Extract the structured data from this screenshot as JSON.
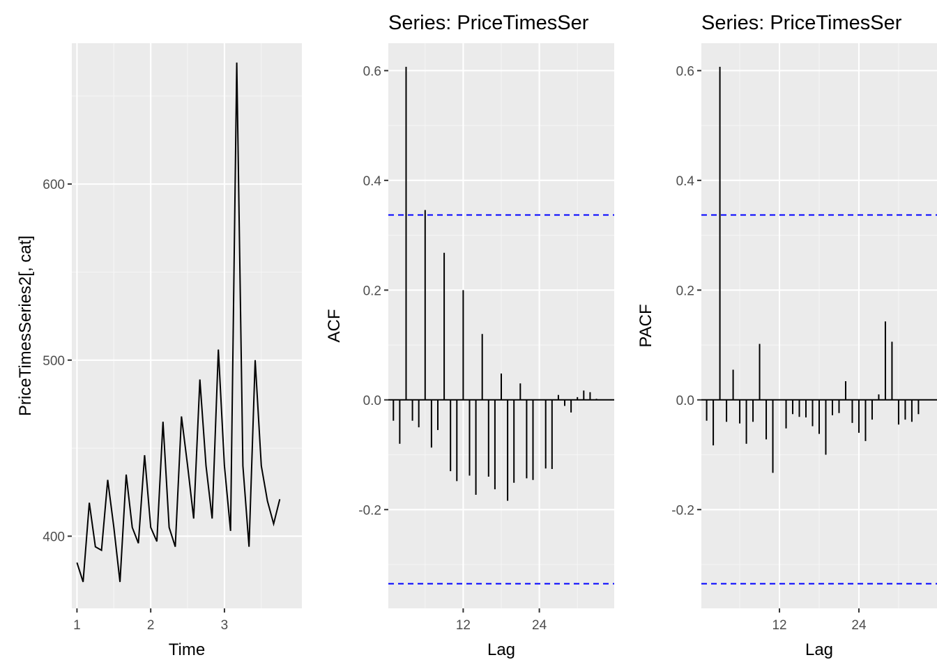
{
  "colors": {
    "panel_bg": "#ebebeb",
    "grid_major": "#ffffff",
    "grid_minor": "#f5f5f5",
    "line": "#000000",
    "ci_line": "#0000ff",
    "tick_text": "#4d4d4d"
  },
  "chart_data": [
    {
      "type": "line",
      "title": "",
      "xlabel": "Time",
      "ylabel": "PriceTimesSeries2[, cat]",
      "xlim": [
        0.93,
        4.05
      ],
      "ylim": [
        359,
        680
      ],
      "x_ticks": [
        1,
        2,
        3
      ],
      "x_tick_labels": [
        "1",
        "2",
        "3"
      ],
      "x_minor_ticks": [
        1.5,
        2.5,
        3.5
      ],
      "y_ticks": [
        400,
        500,
        600
      ],
      "y_tick_labels": [
        "400",
        "500",
        "600"
      ],
      "y_minor_ticks": [
        450,
        550,
        650
      ],
      "grid": true,
      "series": [
        {
          "x": [
            1.0,
            1.083,
            1.167,
            1.25,
            1.333,
            1.417,
            1.5,
            1.583,
            1.667,
            1.75,
            1.833,
            1.917,
            2.0,
            2.083,
            2.167,
            2.25,
            2.333,
            2.417,
            2.5,
            2.583,
            2.667,
            2.75,
            2.833,
            2.917,
            3.0,
            3.083,
            3.167,
            3.25,
            3.333,
            3.417,
            3.5,
            3.583,
            3.667,
            3.75
          ],
          "values": [
            385,
            374,
            419,
            394,
            392,
            432,
            405,
            374,
            435,
            405,
            396,
            446,
            405,
            397,
            465,
            405,
            394,
            468,
            440,
            410,
            489,
            440,
            410,
            506,
            440,
            403,
            669,
            440,
            394,
            500,
            440,
            420,
            407,
            421
          ]
        }
      ]
    },
    {
      "type": "bar",
      "title": "Series: PriceTimesSer",
      "xlabel": "Lag",
      "ylabel": "ACF",
      "xlim": [
        0.2,
        35.8
      ],
      "ylim": [
        -0.38,
        0.65
      ],
      "x_ticks": [
        12,
        24
      ],
      "x_tick_labels": [
        "12",
        "24"
      ],
      "x_minor_ticks": [
        6,
        18,
        30
      ],
      "y_ticks": [
        -0.2,
        0.0,
        0.2,
        0.4,
        0.6
      ],
      "y_tick_labels": [
        "-0.2",
        "0.0",
        "0.2",
        "0.4",
        "0.6"
      ],
      "y_minor_ticks": [
        -0.3,
        -0.1,
        0.1,
        0.3,
        0.5
      ],
      "grid": true,
      "confidence_bounds": [
        0.337,
        -0.335
      ],
      "lags": [
        1,
        2,
        3,
        4,
        5,
        6,
        7,
        8,
        9,
        10,
        11,
        12,
        13,
        14,
        15,
        16,
        17,
        18,
        19,
        20,
        21,
        22,
        23,
        24,
        25,
        26,
        27,
        28,
        29,
        30,
        31,
        32,
        33
      ],
      "values": [
        -0.038,
        -0.08,
        0.607,
        -0.038,
        -0.05,
        0.346,
        -0.087,
        -0.055,
        0.268,
        -0.13,
        -0.148,
        0.2,
        -0.138,
        -0.173,
        0.12,
        -0.14,
        -0.163,
        0.048,
        -0.184,
        -0.151,
        0.03,
        -0.143,
        -0.146,
        0.0,
        -0.125,
        -0.126,
        0.009,
        -0.011,
        -0.023,
        0.005,
        0.017,
        0.014,
        0.002
      ]
    },
    {
      "type": "bar",
      "title": "Series: PriceTimesSer",
      "xlabel": "Lag",
      "ylabel": "PACF",
      "xlim": [
        0.2,
        35.8
      ],
      "ylim": [
        -0.38,
        0.65
      ],
      "x_ticks": [
        12,
        24
      ],
      "x_tick_labels": [
        "12",
        "24"
      ],
      "x_minor_ticks": [
        6,
        18,
        30
      ],
      "y_ticks": [
        -0.2,
        0.0,
        0.2,
        0.4,
        0.6
      ],
      "y_tick_labels": [
        "-0.2",
        "0.0",
        "0.2",
        "0.4",
        "0.6"
      ],
      "y_minor_ticks": [
        -0.3,
        -0.1,
        0.1,
        0.3,
        0.5
      ],
      "grid": true,
      "confidence_bounds": [
        0.337,
        -0.335
      ],
      "lags": [
        1,
        2,
        3,
        4,
        5,
        6,
        7,
        8,
        9,
        10,
        11,
        12,
        13,
        14,
        15,
        16,
        17,
        18,
        19,
        20,
        21,
        22,
        23,
        24,
        25,
        26,
        27,
        28,
        29,
        30,
        31,
        32,
        33
      ],
      "values": [
        -0.038,
        -0.083,
        0.607,
        -0.04,
        0.055,
        -0.043,
        -0.08,
        -0.04,
        0.102,
        -0.072,
        -0.133,
        0.0,
        -0.052,
        -0.026,
        -0.031,
        -0.032,
        -0.048,
        -0.062,
        -0.1,
        -0.028,
        -0.024,
        0.034,
        -0.042,
        -0.06,
        -0.075,
        -0.036,
        0.01,
        0.143,
        0.106,
        -0.045,
        -0.036,
        -0.04,
        -0.026
      ]
    }
  ]
}
